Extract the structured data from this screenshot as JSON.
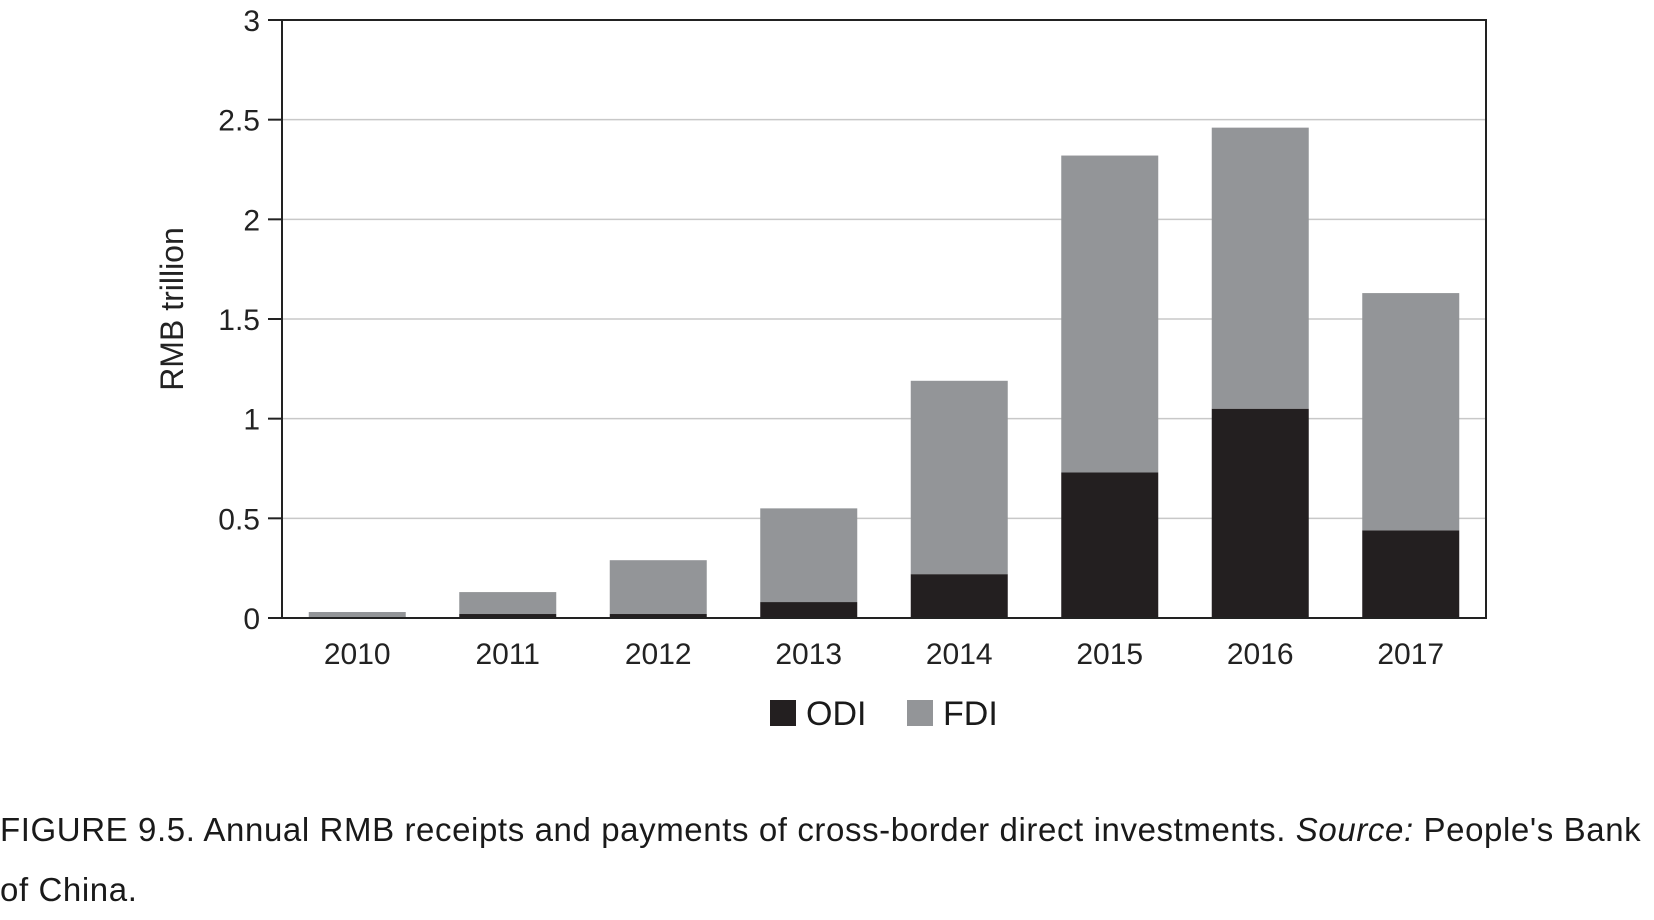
{
  "chart_data": {
    "type": "bar",
    "stacked": true,
    "categories": [
      "2010",
      "2011",
      "2012",
      "2013",
      "2014",
      "2015",
      "2016",
      "2017"
    ],
    "series": [
      {
        "name": "ODI",
        "color": "#231f20",
        "values": [
          0.0,
          0.02,
          0.02,
          0.08,
          0.22,
          0.73,
          1.05,
          0.44
        ]
      },
      {
        "name": "FDI",
        "color": "#939598",
        "values": [
          0.03,
          0.11,
          0.27,
          0.47,
          0.97,
          1.59,
          1.41,
          1.19
        ]
      }
    ],
    "ylabel": "RMB trillion",
    "xlabel": "",
    "ylim": [
      0,
      3
    ],
    "yticks": [
      0,
      0.5,
      1,
      1.5,
      2,
      2.5,
      3
    ],
    "ytick_labels": [
      "0",
      "0.5",
      "1",
      "1.5",
      "2",
      "2.5",
      "3"
    ],
    "grid": "horizontal",
    "gridline_color": "#c8c8c8",
    "legend_position": "bottom-center"
  },
  "caption": {
    "label": "FIGURE 9.5.",
    "text": " Annual RMB receipts and payments of cross-border direct investments. ",
    "source_label": "Source:",
    "source_text": " People's Bank of China."
  }
}
